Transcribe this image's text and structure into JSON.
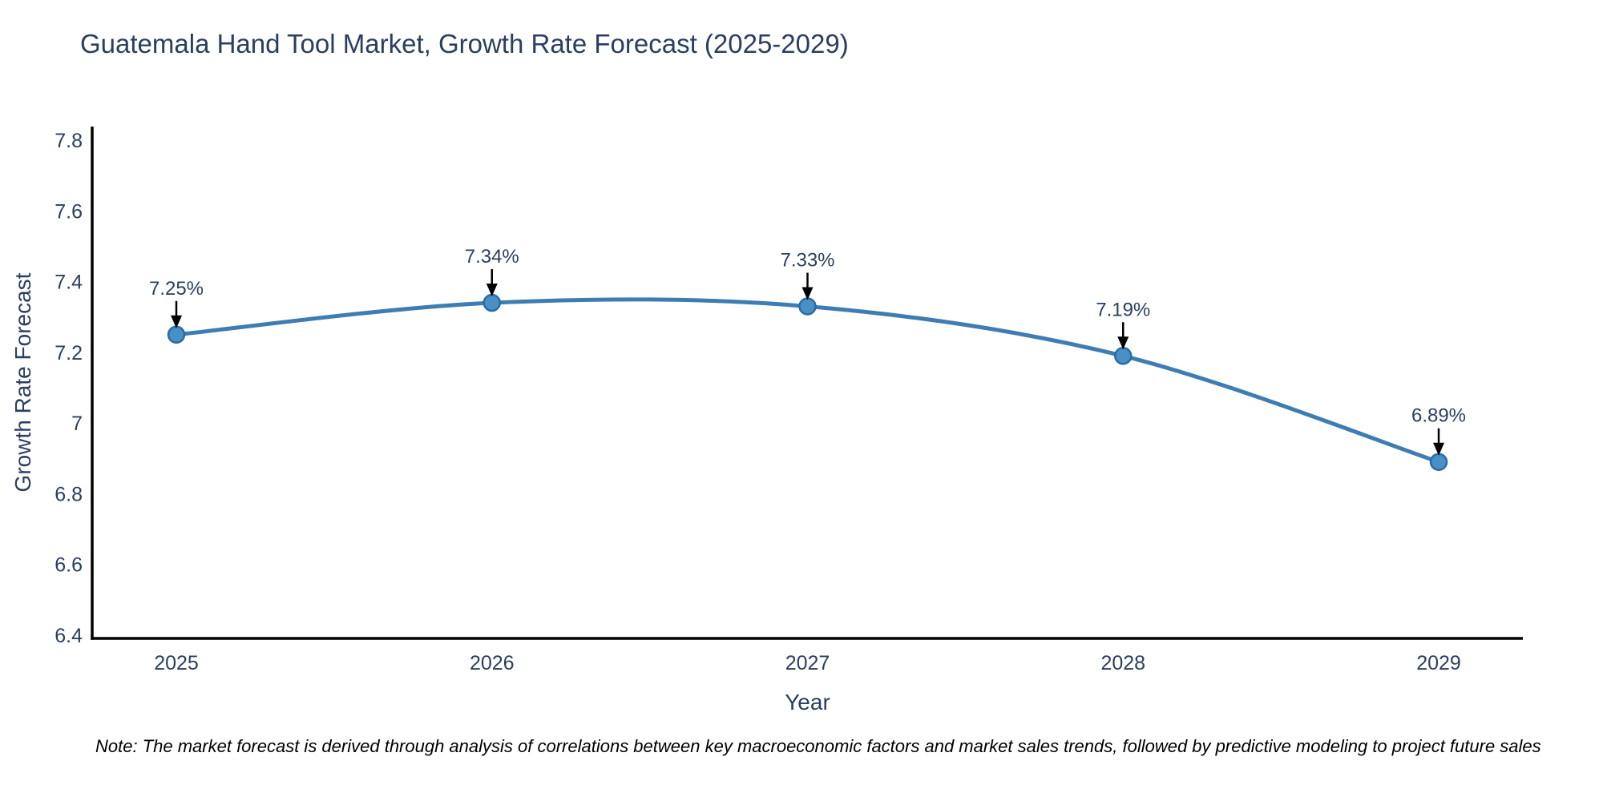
{
  "page": {
    "note": "Note: The market forecast is derived through analysis of correlations between key macroeconomic factors and market sales trends, followed by predictive modeling to project future sales"
  },
  "chart_data": {
    "type": "line",
    "title": "Guatemala Hand Tool Market, Growth Rate Forecast (2025-2029)",
    "xlabel": "Year",
    "ylabel": "Growth Rate Forecast",
    "categories": [
      "2025",
      "2026",
      "2027",
      "2028",
      "2029"
    ],
    "values": [
      7.25,
      7.34,
      7.33,
      7.19,
      6.89
    ],
    "point_labels": [
      "7.25%",
      "7.34%",
      "7.33%",
      "7.19%",
      "6.89%"
    ],
    "ylim": [
      6.4,
      7.8
    ],
    "yticks": [
      6.4,
      6.6,
      6.8,
      7,
      7.2,
      7.4,
      7.6,
      7.8
    ],
    "grid": false,
    "legend": "none",
    "line_shape": "spline",
    "annotation_arrows": true,
    "colors": {
      "line": "#3e7db3",
      "marker_fill": "#4990c6",
      "marker_stroke": "#2b6ba3",
      "text": "#2a3f5f",
      "axis": "#000000",
      "arrow": "#000000",
      "background": "#ffffff"
    }
  }
}
